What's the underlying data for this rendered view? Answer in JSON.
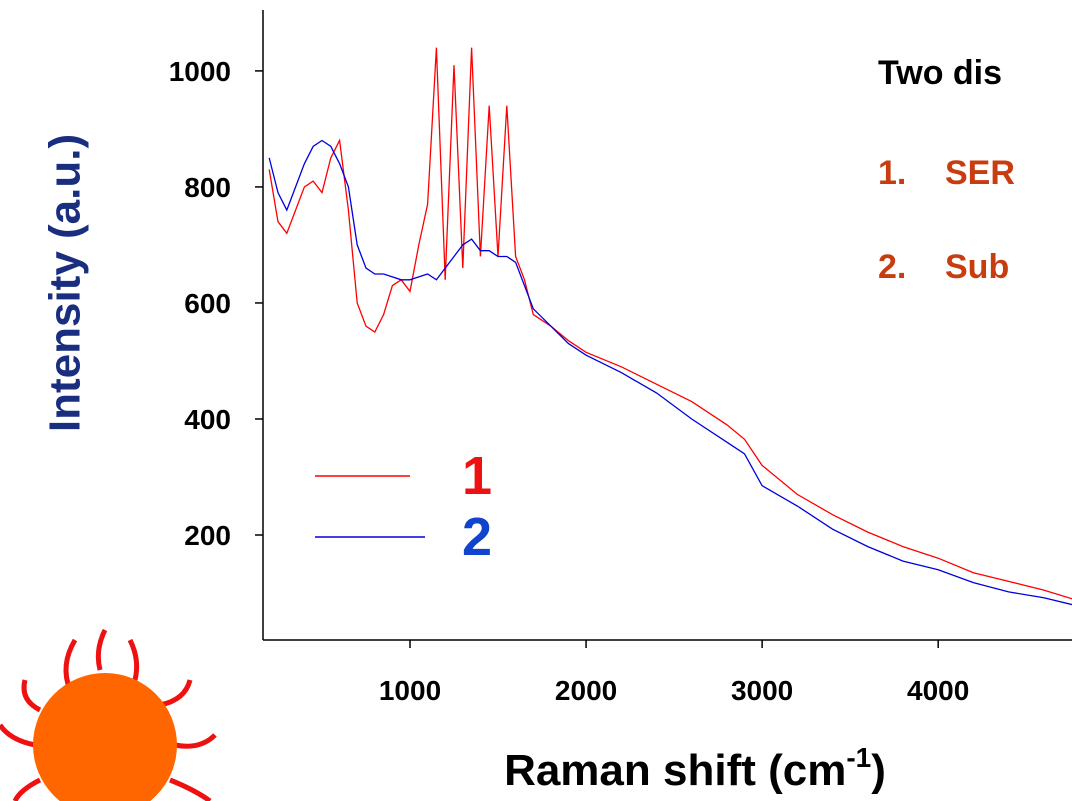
{
  "chart_data": {
    "type": "line",
    "ylabel": "Intensity (a.u.)",
    "xlabel": "Raman shift (cm",
    "xlabel_sup": "-1",
    "xlabel_end": ")",
    "annotation": {
      "title": "Two dis",
      "items": [
        {
          "number": "1.",
          "text": "SER",
          "color": "#c83c10"
        },
        {
          "number": "2.",
          "text": "Sub",
          "color": "#c83c10"
        }
      ]
    },
    "x": [
      200,
      250,
      300,
      350,
      400,
      450,
      500,
      550,
      600,
      650,
      700,
      750,
      800,
      850,
      900,
      950,
      1000,
      1050,
      1100,
      1150,
      1200,
      1250,
      1300,
      1350,
      1400,
      1450,
      1500,
      1550,
      1600,
      1650,
      1700,
      1800,
      1900,
      2000,
      2200,
      2400,
      2600,
      2800,
      2900,
      3000,
      3200,
      3400,
      3600,
      3800,
      4000,
      4200,
      4400,
      4600,
      4760
    ],
    "series": [
      {
        "name": "1",
        "color": "#ff0000",
        "label_color": "#ee1111",
        "values": [
          830,
          740,
          720,
          760,
          800,
          810,
          790,
          850,
          880,
          760,
          600,
          560,
          550,
          580,
          630,
          640,
          620,
          700,
          770,
          1040,
          640,
          1010,
          660,
          1040,
          680,
          940,
          680,
          940,
          680,
          640,
          580,
          560,
          535,
          515,
          490,
          460,
          430,
          390,
          365,
          320,
          270,
          235,
          205,
          180,
          160,
          135,
          120,
          105,
          90
        ]
      },
      {
        "name": "2",
        "color": "#0000dd",
        "label_color": "#1144cc",
        "values": [
          850,
          790,
          760,
          800,
          840,
          870,
          880,
          870,
          840,
          800,
          700,
          660,
          650,
          650,
          645,
          640,
          640,
          645,
          650,
          640,
          660,
          680,
          700,
          710,
          690,
          690,
          680,
          680,
          670,
          630,
          590,
          560,
          530,
          510,
          480,
          445,
          400,
          360,
          340,
          285,
          250,
          210,
          180,
          155,
          140,
          118,
          102,
          92,
          80
        ]
      }
    ],
    "xlim": [
      165,
      4760
    ],
    "ylim": [
      19,
      1105
    ],
    "xticks": [
      1000,
      2000,
      3000,
      4000
    ],
    "yticks": [
      200,
      400,
      600,
      800,
      1000
    ]
  }
}
